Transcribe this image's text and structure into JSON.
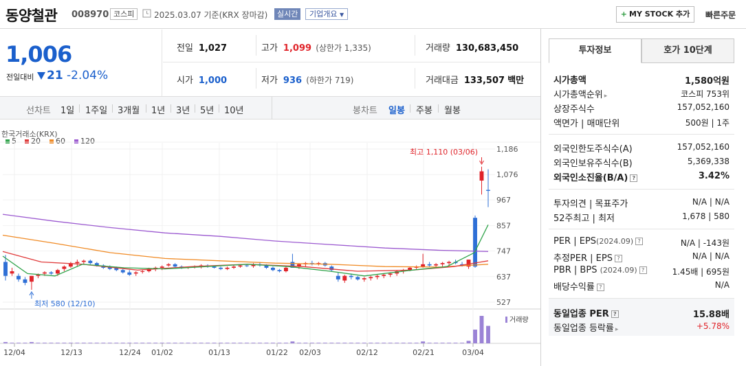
{
  "header": {
    "name": "동양철관",
    "code": "008970",
    "market": "코스피",
    "date_text": "2025.03.07 기준(KRX 장마감)",
    "realtime": "실시간",
    "company_info": "기업개요",
    "mystock": "MY STOCK 추가",
    "quick_order": "빠른주문"
  },
  "price": {
    "current": "1,006",
    "diff_label": "전일대비",
    "diff": "21",
    "rate": "-2.04%"
  },
  "stats": {
    "prev_label": "전일",
    "prev": "1,027",
    "open_label": "시가",
    "open": "1,000",
    "high_label": "고가",
    "high": "1,099",
    "upper_limit": "(상한가 1,335)",
    "low_label": "저가",
    "low": "936",
    "lower_limit": "(하한가 719)",
    "volume_label": "거래량",
    "volume": "130,683,450",
    "amount_label": "거래대금",
    "amount": "133,507",
    "amount_unit": "백만"
  },
  "chart_tabs": {
    "line_label": "선차트",
    "line_items": [
      "1일",
      "1주일",
      "3개월",
      "1년",
      "3년",
      "5년",
      "10년"
    ],
    "candle_label": "봉차트",
    "candle_items": [
      "일봉",
      "주봉",
      "월봉"
    ],
    "active_candle": "일봉"
  },
  "chart_data": {
    "type": "candlestick",
    "source": "한국거래소(KRX)",
    "moving_averages": [
      {
        "name": "5",
        "color": "#2fa34a"
      },
      {
        "name": "20",
        "color": "#e03a3a"
      },
      {
        "name": "60",
        "color": "#f08a24"
      },
      {
        "name": "120",
        "color": "#9b59d0"
      }
    ],
    "y_ticks": [
      1186,
      1076,
      967,
      857,
      747,
      637,
      527
    ],
    "ylim": [
      527,
      1186
    ],
    "x_ticks": [
      "12/04",
      "12/13",
      "12/24",
      "01/02",
      "01/13",
      "01/22",
      "02/03",
      "02/12",
      "02/21",
      "03/04"
    ],
    "annotation_high": "최고 1,110 (03/06)",
    "annotation_low": "최저 580 (12/10)",
    "volume_label": "거래량",
    "high_value": 1110,
    "low_value": 580,
    "last_close": 1006
  },
  "side_panel": {
    "tab_invest": "투자정보",
    "tab_quote": "호가 10단계",
    "rows": {
      "mcap_k": "시가총액",
      "mcap_v": "1,580억원",
      "rank_k": "시가총액순위",
      "rank_v": "코스피 753위",
      "shares_k": "상장주식수",
      "shares_v": "157,052,160",
      "par_k": "액면가 | 매매단위",
      "par_v": "500원 | 1주",
      "f_limit_k": "외국인한도주식수(A)",
      "f_limit_v": "157,052,160",
      "f_hold_k": "외국인보유주식수(B)",
      "f_hold_v": "5,369,338",
      "f_rate_k": "외국인소진율(B/A)",
      "f_rate_v": "3.42%",
      "opinion_k": "투자의견 | 목표주가",
      "opinion_v": "N/A | N/A",
      "w52_k": "52주최고 | 최저",
      "w52_v": "1,678 | 580",
      "per_k": "PER | EPS",
      "per_year": "(2024.09)",
      "per_v": "N/A | -143원",
      "eper_k": "추정PER | EPS",
      "eper_v": "N/A | N/A",
      "pbr_k": "PBR | BPS",
      "pbr_year": "(2024.09)",
      "pbr_v": "1.45배 | 695원",
      "div_k": "배당수익률",
      "div_v": "N/A",
      "ind_per_k": "동일업종 PER",
      "ind_per_v": "15.88배",
      "ind_rate_k": "동일업종 등락률",
      "ind_rate_v": "+5.78%"
    }
  }
}
